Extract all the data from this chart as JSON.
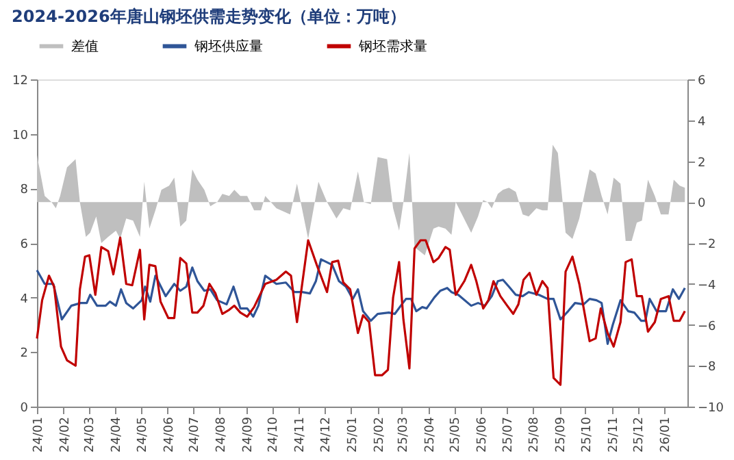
{
  "chart_data": {
    "type": "line",
    "title": "2024-2026年唐山钢坯供需走势变化（单位：万吨）",
    "xlim": [
      "2024-01-01",
      "2026-01-28"
    ],
    "xticks": [
      {
        "value": "2024-01",
        "label": "24/01"
      },
      {
        "value": "2024-02",
        "label": "24/02"
      },
      {
        "value": "2024-03",
        "label": "24/03"
      },
      {
        "value": "2024-04",
        "label": "24/04"
      },
      {
        "value": "2024-05",
        "label": "24/05"
      },
      {
        "value": "2024-06",
        "label": "24/06"
      },
      {
        "value": "2024-07",
        "label": "24/07"
      },
      {
        "value": "2024-08",
        "label": "24/08"
      },
      {
        "value": "2024-09",
        "label": "24/09"
      },
      {
        "value": "2024-10",
        "label": "24/10"
      },
      {
        "value": "2024-11",
        "label": "24/11"
      },
      {
        "value": "2024-12",
        "label": "24/12"
      },
      {
        "value": "2025-01",
        "label": "25/01"
      },
      {
        "value": "2025-02",
        "label": "25/02"
      },
      {
        "value": "2025-03",
        "label": "25/03"
      },
      {
        "value": "2025-04",
        "label": "25/04"
      },
      {
        "value": "2025-05",
        "label": "25/05"
      },
      {
        "value": "2025-06",
        "label": "25/06"
      },
      {
        "value": "2025-07",
        "label": "25/07"
      },
      {
        "value": "2025-08",
        "label": "25/08"
      },
      {
        "value": "2025-09",
        "label": "25/09"
      },
      {
        "value": "2025-10",
        "label": "25/10"
      },
      {
        "value": "2025-11",
        "label": "25/11"
      },
      {
        "value": "2025-12",
        "label": "25/12"
      },
      {
        "value": "2026-01",
        "label": "26/01"
      }
    ],
    "ylim": [
      0,
      12
    ],
    "yticks": [
      0,
      2,
      4,
      6,
      8,
      10,
      12
    ],
    "y2lim": [
      -10,
      6
    ],
    "y2ticks": [
      -10,
      -8,
      -6,
      -4,
      -2,
      0,
      2,
      4,
      6
    ],
    "legend": "top",
    "series": [
      {
        "name": "差值",
        "type": "area",
        "axis": "y2",
        "color": "#bfbfbf",
        "x": [
          "2024-01-01",
          "2024-01-10",
          "2024-01-18",
          "2024-01-23",
          "2024-01-28",
          "2024-02-05",
          "2024-02-15",
          "2024-02-20",
          "2024-02-27",
          "2024-03-03",
          "2024-03-10",
          "2024-03-16",
          "2024-03-24",
          "2024-04-02",
          "2024-04-07",
          "2024-04-14",
          "2024-04-22",
          "2024-04-30",
          "2024-05-05",
          "2024-05-11",
          "2024-05-18",
          "2024-05-25",
          "2024-06-03",
          "2024-06-09",
          "2024-06-16",
          "2024-06-23",
          "2024-06-30",
          "2024-07-06",
          "2024-07-14",
          "2024-07-21",
          "2024-07-29",
          "2024-08-04",
          "2024-08-12",
          "2024-08-18",
          "2024-08-25",
          "2024-09-02",
          "2024-09-10",
          "2024-09-18",
          "2024-09-23",
          "2024-10-06",
          "2024-10-22",
          "2024-10-30",
          "2024-11-12",
          "2024-11-24",
          "2024-12-04",
          "2024-12-15",
          "2024-12-23",
          "2024-12-31",
          "2025-01-09",
          "2025-01-16",
          "2025-01-24",
          "2025-02-01",
          "2025-02-12",
          "2025-02-19",
          "2025-02-26",
          "2025-03-03",
          "2025-03-10",
          "2025-03-16",
          "2025-03-28",
          "2025-04-07",
          "2025-04-13",
          "2025-04-21",
          "2025-04-28",
          "2025-05-03",
          "2025-05-21",
          "2025-05-29",
          "2025-06-04",
          "2025-06-09",
          "2025-06-14",
          "2025-06-21",
          "2025-06-27",
          "2025-07-04",
          "2025-07-12",
          "2025-07-20",
          "2025-07-27",
          "2025-08-05",
          "2025-08-12",
          "2025-08-18",
          "2025-08-24",
          "2025-08-30",
          "2025-09-08",
          "2025-09-16",
          "2025-09-24",
          "2025-10-06",
          "2025-10-13",
          "2025-10-20",
          "2025-10-27",
          "2025-11-03",
          "2025-11-11",
          "2025-11-17",
          "2025-11-24",
          "2025-11-30",
          "2025-12-06",
          "2025-12-13",
          "2025-12-21",
          "2025-12-28",
          "2026-01-06",
          "2026-01-12",
          "2026-01-19",
          "2026-01-25"
        ],
        "values": [
          2.3,
          0.3,
          0.0,
          -0.3,
          0.3,
          1.7,
          2.1,
          0,
          -1.7,
          -1.5,
          -0.7,
          -2.0,
          -1.7,
          -1.4,
          -1.8,
          -0.8,
          -0.9,
          -1.7,
          1.0,
          -1.3,
          -0.4,
          0.6,
          0.8,
          1.2,
          -1.2,
          -0.9,
          1.6,
          1.1,
          0.6,
          -0.2,
          0.0,
          0.4,
          0.3,
          0.6,
          0.3,
          0.3,
          -0.4,
          -0.4,
          0.3,
          -0.3,
          -0.6,
          0.9,
          -1.8,
          1.0,
          0,
          -0.8,
          -0.3,
          -0.4,
          1.5,
          0,
          -0.1,
          2.2,
          2.1,
          -0.3,
          -1.4,
          0.0,
          2.4,
          -2.2,
          -2.6,
          -1.3,
          -1.2,
          -1.3,
          -1.6,
          0.0,
          -1.5,
          -0.7,
          0.1,
          0.0,
          -0.3,
          0.4,
          0.6,
          0.7,
          0.5,
          -0.6,
          -0.7,
          -0.3,
          -0.4,
          -0.4,
          2.8,
          2.4,
          -1.5,
          -1.8,
          -0.8,
          1.6,
          1.4,
          0.3,
          -0.6,
          1.2,
          0.9,
          -1.9,
          -1.9,
          -1.0,
          -0.9,
          1.1,
          0.3,
          -0.6,
          -0.6,
          1.1,
          0.8,
          0.7
        ]
      },
      {
        "name": "钢坯供应量",
        "color": "#2f5597",
        "x": [
          "2024-01-01",
          "2024-01-10",
          "2024-01-20",
          "2024-01-30",
          "2024-02-10",
          "2024-02-21",
          "2024-02-28",
          "2024-03-03",
          "2024-03-11",
          "2024-03-21",
          "2024-03-26",
          "2024-04-02",
          "2024-04-08",
          "2024-04-14",
          "2024-04-22",
          "2024-05-02",
          "2024-05-06",
          "2024-05-12",
          "2024-05-18",
          "2024-05-30",
          "2024-06-09",
          "2024-06-16",
          "2024-06-23",
          "2024-06-30",
          "2024-07-06",
          "2024-07-14",
          "2024-07-21",
          "2024-07-29",
          "2024-08-09",
          "2024-08-17",
          "2024-08-25",
          "2024-09-02",
          "2024-09-09",
          "2024-09-15",
          "2024-09-23",
          "2024-10-06",
          "2024-10-17",
          "2024-10-27",
          "2024-11-05",
          "2024-11-14",
          "2024-11-21",
          "2024-11-27",
          "2024-12-10",
          "2024-12-18",
          "2024-12-26",
          "2025-01-03",
          "2025-01-09",
          "2025-01-15",
          "2025-01-24",
          "2025-02-01",
          "2025-02-14",
          "2025-02-21",
          "2025-02-28",
          "2025-03-06",
          "2025-03-12",
          "2025-03-18",
          "2025-03-25",
          "2025-03-30",
          "2025-04-08",
          "2025-04-15",
          "2025-04-23",
          "2025-04-28",
          "2025-05-06",
          "2025-05-21",
          "2025-05-29",
          "2025-06-06",
          "2025-06-14",
          "2025-06-21",
          "2025-06-27",
          "2025-07-04",
          "2025-07-12",
          "2025-07-20",
          "2025-07-27",
          "2025-08-08",
          "2025-08-18",
          "2025-08-25",
          "2025-09-02",
          "2025-09-11",
          "2025-09-19",
          "2025-09-29",
          "2025-10-06",
          "2025-10-14",
          "2025-10-20",
          "2025-10-27",
          "2025-11-02",
          "2025-11-11",
          "2025-11-20",
          "2025-11-27",
          "2025-12-05",
          "2025-12-10",
          "2025-12-15",
          "2025-12-23",
          "2026-01-03",
          "2026-01-11",
          "2026-01-18",
          "2026-01-25"
        ],
        "values": [
          5.0,
          4.5,
          4.5,
          3.2,
          3.7,
          3.8,
          3.8,
          4.1,
          3.7,
          3.7,
          3.85,
          3.7,
          4.3,
          3.8,
          3.6,
          3.9,
          4.4,
          3.85,
          4.8,
          4.05,
          4.5,
          4.25,
          4.4,
          5.1,
          4.6,
          4.25,
          4.3,
          3.9,
          3.75,
          4.4,
          3.6,
          3.6,
          3.3,
          3.7,
          4.8,
          4.5,
          4.55,
          4.2,
          4.2,
          4.15,
          4.6,
          5.4,
          5.2,
          4.6,
          4.4,
          3.95,
          4.3,
          3.5,
          3.15,
          3.4,
          3.45,
          3.4,
          3.7,
          3.95,
          3.95,
          3.5,
          3.65,
          3.6,
          4.0,
          4.25,
          4.35,
          4.2,
          4.1,
          3.7,
          3.8,
          3.7,
          4.05,
          4.6,
          4.65,
          4.4,
          4.1,
          4.05,
          4.2,
          4.1,
          3.95,
          3.95,
          3.2,
          3.5,
          3.8,
          3.75,
          3.95,
          3.9,
          3.8,
          2.3,
          3.0,
          3.9,
          3.5,
          3.45,
          3.15,
          3.15,
          3.95,
          3.5,
          3.5,
          4.3,
          3.95,
          4.35
        ]
      },
      {
        "name": "钢坯需求量",
        "color": "#c00000",
        "x": [
          "2024-01-01",
          "2024-01-07",
          "2024-01-15",
          "2024-01-21",
          "2024-01-29",
          "2024-02-05",
          "2024-02-15",
          "2024-02-20",
          "2024-02-26",
          "2024-03-02",
          "2024-03-09",
          "2024-03-16",
          "2024-03-24",
          "2024-03-30",
          "2024-04-07",
          "2024-04-14",
          "2024-04-21",
          "2024-04-30",
          "2024-05-05",
          "2024-05-11",
          "2024-05-18",
          "2024-05-24",
          "2024-06-02",
          "2024-06-09",
          "2024-06-16",
          "2024-06-23",
          "2024-06-30",
          "2024-07-06",
          "2024-07-13",
          "2024-07-20",
          "2024-07-27",
          "2024-08-04",
          "2024-08-12",
          "2024-08-18",
          "2024-08-25",
          "2024-09-02",
          "2024-09-10",
          "2024-09-23",
          "2024-10-06",
          "2024-10-17",
          "2024-10-23",
          "2024-10-30",
          "2024-11-12",
          "2024-11-22",
          "2024-12-04",
          "2024-12-10",
          "2024-12-17",
          "2024-12-23",
          "2024-12-31",
          "2025-01-09",
          "2025-01-15",
          "2025-01-22",
          "2025-01-29",
          "2025-02-06",
          "2025-02-13",
          "2025-02-19",
          "2025-02-26",
          "2025-03-03",
          "2025-03-10",
          "2025-03-16",
          "2025-03-23",
          "2025-03-29",
          "2025-04-07",
          "2025-04-13",
          "2025-04-21",
          "2025-04-26",
          "2025-05-03",
          "2025-05-13",
          "2025-05-21",
          "2025-05-27",
          "2025-06-04",
          "2025-06-10",
          "2025-06-16",
          "2025-06-24",
          "2025-07-02",
          "2025-07-09",
          "2025-07-15",
          "2025-07-21",
          "2025-07-28",
          "2025-08-05",
          "2025-08-12",
          "2025-08-18",
          "2025-08-25",
          "2025-09-02",
          "2025-09-08",
          "2025-09-16",
          "2025-09-24",
          "2025-10-06",
          "2025-10-13",
          "2025-10-19",
          "2025-10-27",
          "2025-11-03",
          "2025-11-11",
          "2025-11-17",
          "2025-11-24",
          "2025-11-30",
          "2025-12-06",
          "2025-12-13",
          "2025-12-21",
          "2025-12-28",
          "2026-01-06",
          "2026-01-12",
          "2026-01-19",
          "2026-01-25"
        ],
        "values": [
          2.5,
          3.9,
          4.8,
          4.4,
          2.2,
          1.7,
          1.5,
          4.3,
          5.5,
          5.55,
          4.1,
          5.85,
          5.7,
          4.85,
          6.2,
          4.5,
          4.45,
          5.75,
          3.2,
          5.2,
          5.15,
          3.85,
          3.25,
          3.25,
          5.45,
          5.25,
          3.45,
          3.45,
          3.7,
          4.5,
          4.15,
          3.4,
          3.55,
          3.7,
          3.45,
          3.3,
          3.65,
          4.5,
          4.65,
          4.95,
          4.8,
          3.1,
          6.1,
          5.2,
          4.2,
          5.3,
          5.35,
          4.55,
          4.3,
          2.7,
          3.35,
          3.1,
          1.15,
          1.15,
          1.35,
          4.0,
          5.3,
          3.2,
          1.4,
          5.8,
          6.1,
          6.1,
          5.3,
          5.45,
          5.85,
          5.75,
          4.1,
          4.6,
          5.2,
          4.6,
          3.6,
          3.9,
          4.6,
          4.05,
          3.7,
          3.4,
          3.75,
          4.65,
          4.9,
          4.1,
          4.6,
          4.35,
          1.05,
          0.8,
          4.95,
          5.5,
          4.5,
          2.4,
          2.5,
          3.6,
          2.7,
          2.2,
          3.1,
          5.3,
          5.4,
          4.05,
          4.05,
          2.75,
          3.1,
          3.95,
          4.05,
          3.15,
          3.15,
          3.5
        ]
      }
    ]
  }
}
